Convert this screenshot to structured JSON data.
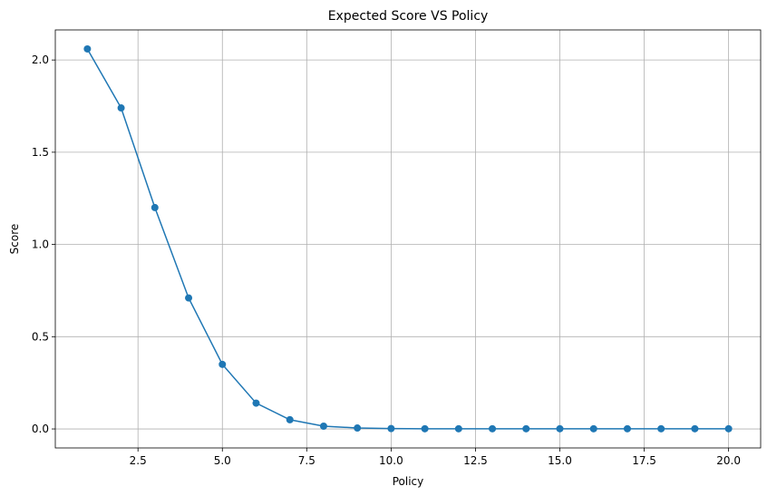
{
  "chart_data": {
    "type": "line",
    "title": "Expected Score VS Policy",
    "xlabel": "Policy",
    "ylabel": "Score",
    "xlim": [
      0.05,
      20.95
    ],
    "ylim": [
      -0.103,
      2.163
    ],
    "grid": true,
    "marker": "circle",
    "colors": {
      "series": "#1f77b4",
      "grid": "#b0b0b0"
    },
    "x_ticks": [
      2.5,
      5.0,
      7.5,
      10.0,
      12.5,
      15.0,
      17.5,
      20.0
    ],
    "x_tick_labels": [
      "2.5",
      "5.0",
      "7.5",
      "10.0",
      "12.5",
      "15.0",
      "17.5",
      "20.0"
    ],
    "y_ticks": [
      0.0,
      0.5,
      1.0,
      1.5,
      2.0
    ],
    "y_tick_labels": [
      "0.0",
      "0.5",
      "1.0",
      "1.5",
      "2.0"
    ],
    "series": [
      {
        "x": [
          1,
          2,
          3,
          4,
          5,
          6,
          7,
          8,
          9,
          10,
          11,
          12,
          13,
          14,
          15,
          16,
          17,
          18,
          19,
          20
        ],
        "values": [
          2.06,
          1.74,
          1.2,
          0.71,
          0.35,
          0.14,
          0.05,
          0.015,
          0.005,
          0.002,
          0.001,
          0.001,
          0.001,
          0.001,
          0.001,
          0.001,
          0.001,
          0.001,
          0.001,
          0.001
        ]
      }
    ]
  }
}
